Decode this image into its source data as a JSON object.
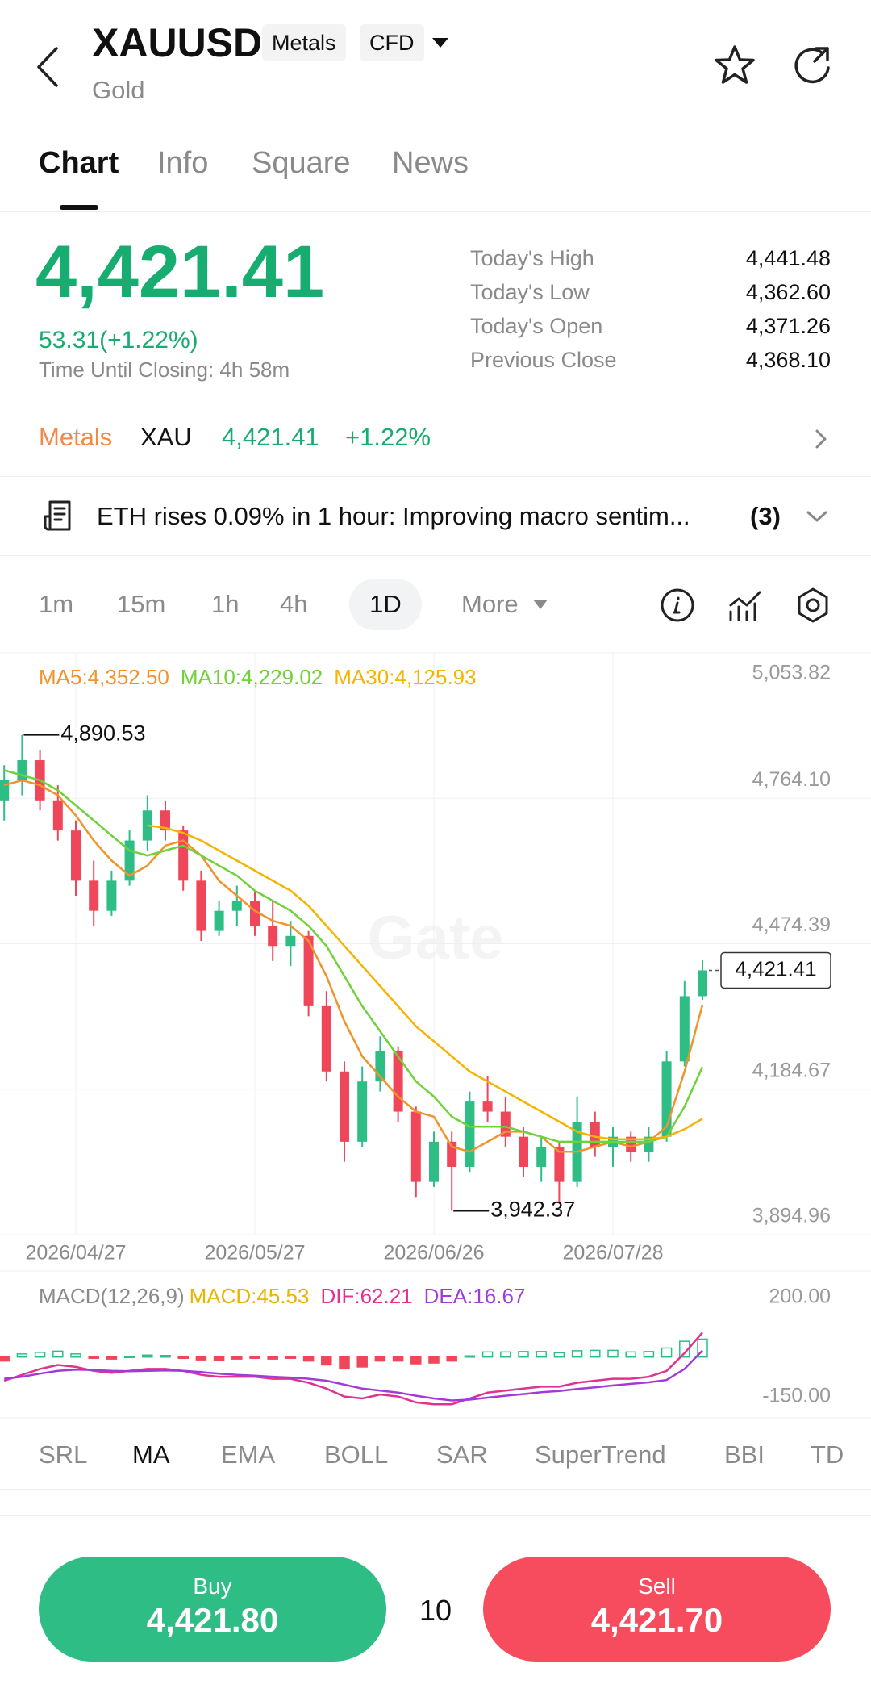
{
  "header": {
    "symbol": "XAUUSD",
    "tags": [
      "Metals",
      "CFD"
    ],
    "name": "Gold"
  },
  "tabs": [
    "Chart",
    "Info",
    "Square",
    "News"
  ],
  "quote": {
    "price": "4,421.41",
    "change": "53.31(+1.22%)",
    "closing": "Time Until Closing: 4h 58m",
    "stats": [
      {
        "label": "Today's High",
        "value": "4,441.48"
      },
      {
        "label": "Today's Low",
        "value": "4,362.60"
      },
      {
        "label": "Today's Open",
        "value": "4,371.26"
      },
      {
        "label": "Previous Close",
        "value": "4,368.10"
      }
    ]
  },
  "related": {
    "category": "Metals",
    "asset": "XAU",
    "price": "4,421.41",
    "change": "+1.22%"
  },
  "news": {
    "text": "ETH rises 0.09% in 1 hour: Improving macro sentim...",
    "count": "(3)"
  },
  "timeframes": [
    "1m",
    "15m",
    "1h",
    "4h",
    "1D",
    "More"
  ],
  "chart_data": [
    {
      "type": "candlestick",
      "watermark": "Gate",
      "grid": true,
      "up_color": "#2ebd85",
      "down_color": "#f0465a",
      "categories": [
        null,
        null,
        null,
        null,
        "2026/04/27",
        null,
        null,
        null,
        null,
        null,
        null,
        null,
        null,
        null,
        "2026/05/27",
        null,
        null,
        null,
        null,
        null,
        null,
        null,
        null,
        null,
        "2026/06/26",
        null,
        null,
        null,
        null,
        null,
        null,
        null,
        null,
        null,
        "2026/07/28",
        null,
        null,
        null,
        null,
        null
      ],
      "open": [
        4760,
        4800,
        4840,
        4760,
        4700,
        4600,
        4540,
        4600,
        4680,
        4740,
        4700,
        4600,
        4500,
        4540,
        4560,
        4510,
        4470,
        4490,
        4350,
        4220,
        4080,
        4200,
        4260,
        4140,
        4000,
        4080,
        4030,
        4160,
        4140,
        4090,
        4030,
        4070,
        4000,
        4120,
        4070,
        4090,
        4060,
        4090,
        4240,
        4370
      ],
      "high": [
        4830,
        4890.53,
        4860,
        4790,
        4720,
        4640,
        4620,
        4700,
        4770,
        4760,
        4710,
        4620,
        4560,
        4590,
        4580,
        4560,
        4520,
        4500,
        4380,
        4240,
        4230,
        4290,
        4270,
        4150,
        4100,
        4100,
        4180,
        4210,
        4170,
        4110,
        4090,
        4080,
        4170,
        4140,
        4110,
        4100,
        4110,
        4260,
        4400,
        4441.48
      ],
      "low": [
        4720,
        4770,
        4740,
        4680,
        4570,
        4510,
        4530,
        4590,
        4660,
        4680,
        4580,
        4480,
        4490,
        4510,
        4490,
        4440,
        4430,
        4330,
        4200,
        4040,
        4070,
        4180,
        4120,
        3970,
        3990,
        3942.37,
        4020,
        4120,
        4070,
        4010,
        4000,
        3960,
        3990,
        4050,
        4030,
        4040,
        4040,
        4080,
        4230,
        4362.6
      ],
      "close": [
        4800,
        4840,
        4760,
        4700,
        4600,
        4540,
        4600,
        4680,
        4740,
        4700,
        4600,
        4500,
        4540,
        4560,
        4510,
        4470,
        4490,
        4350,
        4220,
        4080,
        4200,
        4260,
        4140,
        4000,
        4080,
        4030,
        4160,
        4140,
        4090,
        4030,
        4070,
        4000,
        4120,
        4070,
        4090,
        4060,
        4090,
        4240,
        4370,
        4421.41
      ],
      "series": [
        {
          "name": "MA5:4,352.50",
          "color": "#f0932b",
          "values": [
            4790,
            4800,
            4790,
            4770,
            4730,
            4680,
            4640,
            4610,
            4630,
            4670,
            4680,
            4650,
            4600,
            4570,
            4540,
            4520,
            4510,
            4480,
            4410,
            4320,
            4250,
            4210,
            4170,
            4140,
            4130,
            4070,
            4060,
            4080,
            4100,
            4100,
            4090,
            4060,
            4060,
            4070,
            4080,
            4070,
            4080,
            4110,
            4220,
            4352.5
          ]
        },
        {
          "name": "MA10:4,229.02",
          "color": "#6fd23a",
          "values": [
            4820,
            4810,
            4800,
            4780,
            4750,
            4720,
            4690,
            4660,
            4650,
            4660,
            4670,
            4650,
            4630,
            4610,
            4580,
            4560,
            4540,
            4510,
            4470,
            4410,
            4350,
            4300,
            4250,
            4200,
            4170,
            4130,
            4110,
            4110,
            4110,
            4100,
            4090,
            4080,
            4080,
            4080,
            4080,
            4080,
            4080,
            4090,
            4150,
            4229.02
          ]
        },
        {
          "name": "MA30:4,125.93",
          "color": "#f5b400",
          "values": [
            null,
            null,
            null,
            null,
            null,
            null,
            null,
            null,
            4710,
            4705,
            4695,
            4680,
            4660,
            4640,
            4620,
            4600,
            4580,
            4550,
            4510,
            4470,
            4430,
            4390,
            4350,
            4310,
            4280,
            4250,
            4220,
            4200,
            4180,
            4160,
            4140,
            4120,
            4100,
            4090,
            4085,
            4085,
            4085,
            4090,
            4105,
            4125.93
          ]
        }
      ],
      "annotations": [
        {
          "value": 4890.53,
          "label": "4,890.53"
        },
        {
          "value": 3942.37,
          "label": "3,942.37"
        }
      ],
      "last_price": {
        "value": 4421.41,
        "label": "4,421.41"
      },
      "ylim": [
        3894.96,
        5053.82
      ],
      "yticks": [
        {
          "value": 5053.82,
          "label": "5,053.82"
        },
        {
          "value": 4764.1,
          "label": "4,764.10"
        },
        {
          "value": 4474.39,
          "label": "4,474.39"
        },
        {
          "value": 4184.67,
          "label": "4,184.67"
        },
        {
          "value": 3894.96,
          "label": "3,894.96"
        }
      ]
    },
    {
      "type": "macd",
      "title": "MACD(12,26,9)",
      "up_color": "#2ebd85",
      "down_color": "#f0465a",
      "series": [
        {
          "name": "MACD:45.53",
          "color": "#e8b400",
          "values": [
            -10,
            8,
            12,
            15,
            8,
            -2,
            -5,
            2,
            5,
            4,
            -1,
            -7,
            -8,
            -5,
            -3,
            -5,
            -3,
            -10,
            -20,
            -30,
            -25,
            -10,
            -10,
            -17,
            -15,
            -10,
            3,
            13,
            13,
            14,
            14,
            11,
            16,
            17,
            17,
            13,
            14,
            23,
            40,
            45.53
          ]
        },
        {
          "name": "DIF:62.21",
          "color": "#e0338f",
          "values": [
            -60,
            -45,
            -30,
            -20,
            -25,
            -35,
            -40,
            -35,
            -30,
            -30,
            -35,
            -45,
            -50,
            -50,
            -50,
            -55,
            -55,
            -65,
            -80,
            -100,
            -105,
            -95,
            -100,
            -115,
            -120,
            -120,
            -105,
            -90,
            -85,
            -80,
            -75,
            -75,
            -65,
            -60,
            -55,
            -55,
            -50,
            -35,
            10,
            62.21
          ]
        },
        {
          "name": "DEA:16.67",
          "color": "#a23bd6",
          "values": [
            -55,
            -50,
            -42,
            -35,
            -32,
            -33,
            -35,
            -36,
            -35,
            -34,
            -35,
            -38,
            -42,
            -45,
            -47,
            -50,
            -52,
            -55,
            -60,
            -70,
            -80,
            -85,
            -90,
            -98,
            -105,
            -110,
            -108,
            -103,
            -98,
            -94,
            -89,
            -86,
            -81,
            -77,
            -72,
            -68,
            -64,
            -58,
            -30,
            16.67
          ]
        }
      ],
      "ylim": [
        -150,
        200
      ],
      "yticks": [
        {
          "value": 200,
          "label": "200.00"
        },
        {
          "value": -150,
          "label": "-150.00"
        }
      ]
    }
  ],
  "indicators": [
    "SRL",
    "MA",
    "EMA",
    "BOLL",
    "SAR",
    "SuperTrend",
    "BBI",
    "TD"
  ],
  "trade": {
    "buy_label": "Buy",
    "buy_price": "4,421.80",
    "quantity": "10",
    "sell_label": "Sell",
    "sell_price": "4,421.70"
  }
}
